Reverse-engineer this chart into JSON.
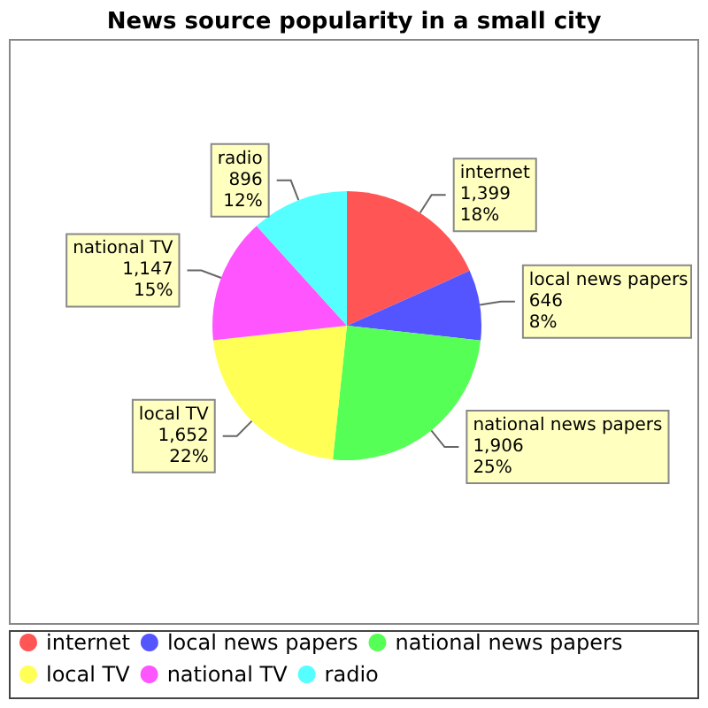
{
  "chart_data": {
    "type": "pie",
    "title": "News source popularity in a small city",
    "categories": [
      "internet",
      "local news papers",
      "national news papers",
      "local TV",
      "national TV",
      "radio"
    ],
    "values": [
      1399,
      646,
      1906,
      1652,
      1147,
      896
    ],
    "colors": [
      "#ff5555",
      "#5555ff",
      "#55ff55",
      "#ffff55",
      "#ff55ff",
      "#55ffff"
    ],
    "value_labels": [
      "1,399\n18%",
      "646\n8%",
      "1,906\n25%",
      "1,652\n22%",
      "1,147\n15%",
      "896\n12%"
    ],
    "legend": "bottom"
  }
}
